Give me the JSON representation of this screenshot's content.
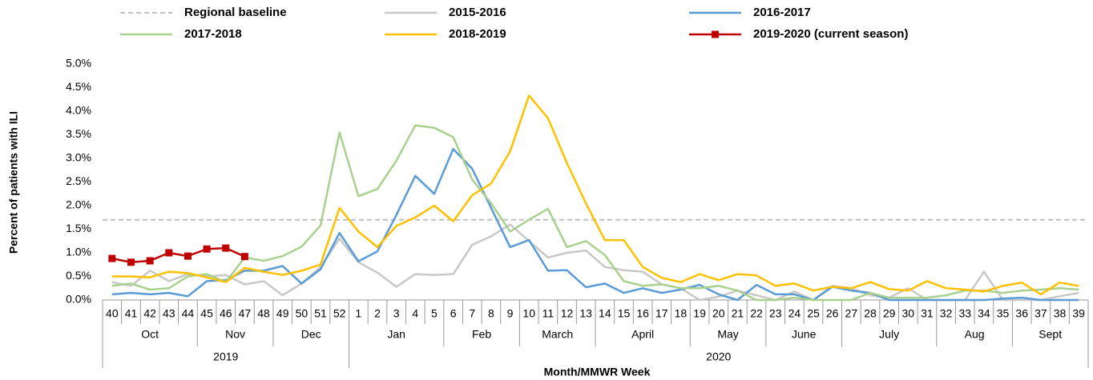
{
  "chart_data": {
    "type": "line",
    "y_label": "Percent of patients with ILI",
    "x_label": "Month/MMWR Week",
    "categories": [
      "40",
      "41",
      "42",
      "43",
      "44",
      "45",
      "46",
      "47",
      "48",
      "49",
      "50",
      "51",
      "52",
      "1",
      "2",
      "3",
      "4",
      "5",
      "6",
      "7",
      "8",
      "9",
      "10",
      "11",
      "12",
      "13",
      "14",
      "15",
      "16",
      "17",
      "18",
      "19",
      "20",
      "21",
      "22",
      "23",
      "24",
      "25",
      "26",
      "27",
      "28",
      "29",
      "30",
      "31",
      "32",
      "33",
      "34",
      "35",
      "36",
      "37",
      "38",
      "39"
    ],
    "category_months": [
      "Oct",
      "Oct",
      "Oct",
      "Oct",
      "Oct",
      "Nov",
      "Nov",
      "Nov",
      "Nov",
      "Dec",
      "Dec",
      "Dec",
      "Dec",
      "Jan",
      "Jan",
      "Jan",
      "Jan",
      "Jan",
      "Feb",
      "Feb",
      "Feb",
      "Feb",
      "March",
      "March",
      "March",
      "March",
      "April",
      "April",
      "April",
      "April",
      "April",
      "May",
      "May",
      "May",
      "May",
      "June",
      "June",
      "June",
      "June",
      "July",
      "July",
      "July",
      "July",
      "July",
      "Aug",
      "Aug",
      "Aug",
      "Aug",
      "Sept",
      "Sept",
      "Sept",
      "Sept"
    ],
    "category_years": [
      "2019",
      "2019",
      "2019",
      "2019",
      "2019",
      "2019",
      "2019",
      "2019",
      "2019",
      "2019",
      "2019",
      "2019",
      "2019",
      "2020",
      "2020",
      "2020",
      "2020",
      "2020",
      "2020",
      "2020",
      "2020",
      "2020",
      "2020",
      "2020",
      "2020",
      "2020",
      "2020",
      "2020",
      "2020",
      "2020",
      "2020",
      "2020",
      "2020",
      "2020",
      "2020",
      "2020",
      "2020",
      "2020",
      "2020",
      "2020",
      "2020",
      "2020",
      "2020",
      "2020",
      "2020",
      "2020",
      "2020",
      "2020",
      "2020",
      "2020",
      "2020",
      "2020"
    ],
    "baseline": {
      "name": "Regional baseline",
      "value": 1.7,
      "color": "#bfbfbf"
    },
    "series": [
      {
        "name": "2015-2016",
        "color": "#c8c8c8",
        "values": [
          0.38,
          0.3,
          0.62,
          0.4,
          0.55,
          0.5,
          0.53,
          0.33,
          0.4,
          0.1,
          0.35,
          0.7,
          1.3,
          0.8,
          0.58,
          0.28,
          0.55,
          0.53,
          0.55,
          1.17,
          1.35,
          1.6,
          1.25,
          0.9,
          1.0,
          1.05,
          0.7,
          0.63,
          0.6,
          0.33,
          0.25,
          0.0,
          0.07,
          0.2,
          0.1,
          0.0,
          0.18,
          0.0,
          0.3,
          0.25,
          0.1,
          0.05,
          0.25,
          0.0,
          0.0,
          0.0,
          0.6,
          0.0,
          0.0,
          0.0,
          0.08,
          0.15
        ]
      },
      {
        "name": "2016-2017",
        "color": "#5b9bd5",
        "values": [
          0.12,
          0.15,
          0.12,
          0.15,
          0.08,
          0.4,
          0.42,
          0.62,
          0.62,
          0.72,
          0.35,
          0.65,
          1.42,
          0.82,
          1.03,
          1.8,
          2.63,
          2.25,
          3.2,
          2.78,
          1.95,
          1.12,
          1.27,
          0.62,
          0.63,
          0.27,
          0.35,
          0.15,
          0.25,
          0.15,
          0.22,
          0.32,
          0.12,
          0.0,
          0.32,
          0.12,
          0.12,
          0.0,
          0.28,
          0.2,
          0.15,
          0.0,
          0.0,
          0.0,
          0.0,
          0.0,
          0.0,
          0.03,
          0.05,
          0.0,
          0.0,
          0.0
        ]
      },
      {
        "name": "2017-2018",
        "color": "#a9d18e",
        "values": [
          0.3,
          0.35,
          0.22,
          0.25,
          0.5,
          0.55,
          0.38,
          0.9,
          0.83,
          0.93,
          1.13,
          1.58,
          3.55,
          2.2,
          2.35,
          2.95,
          3.7,
          3.65,
          3.45,
          2.55,
          2.05,
          1.45,
          1.7,
          1.93,
          1.12,
          1.25,
          0.95,
          0.4,
          0.3,
          0.33,
          0.25,
          0.25,
          0.3,
          0.2,
          0.0,
          0.0,
          0.05,
          0.0,
          0.0,
          0.0,
          0.15,
          0.05,
          0.05,
          0.05,
          0.1,
          0.2,
          0.2,
          0.15,
          0.2,
          0.22,
          0.25,
          0.22
        ]
      },
      {
        "name": "2018-2019",
        "color": "#ffc000",
        "values": [
          0.5,
          0.5,
          0.48,
          0.6,
          0.57,
          0.48,
          0.38,
          0.68,
          0.6,
          0.53,
          0.62,
          0.75,
          1.95,
          1.45,
          1.12,
          1.57,
          1.75,
          2.0,
          1.67,
          2.22,
          2.47,
          3.15,
          4.33,
          3.85,
          2.9,
          2.05,
          1.27,
          1.27,
          0.7,
          0.47,
          0.38,
          0.55,
          0.42,
          0.55,
          0.52,
          0.3,
          0.35,
          0.2,
          0.28,
          0.25,
          0.38,
          0.23,
          0.2,
          0.4,
          0.25,
          0.22,
          0.18,
          0.3,
          0.37,
          0.12,
          0.37,
          0.3
        ]
      },
      {
        "name": "2019-2020 (current season)",
        "color": "#c00000",
        "markers": true,
        "values": [
          0.88,
          0.8,
          0.83,
          1.0,
          0.93,
          1.08,
          1.1,
          0.92,
          null,
          null,
          null,
          null,
          null,
          null,
          null,
          null,
          null,
          null,
          null,
          null,
          null,
          null,
          null,
          null,
          null,
          null,
          null,
          null,
          null,
          null,
          null,
          null,
          null,
          null,
          null,
          null,
          null,
          null,
          null,
          null,
          null,
          null,
          null,
          null,
          null,
          null,
          null,
          null,
          null,
          null,
          null,
          null
        ]
      }
    ],
    "ylim": [
      0,
      5
    ],
    "yticks": [
      {
        "value": 0,
        "label": "0.0%"
      },
      {
        "value": 0.5,
        "label": "0.5%"
      },
      {
        "value": 1,
        "label": "1.0%"
      },
      {
        "value": 1.5,
        "label": "1.5%"
      },
      {
        "value": 2,
        "label": "2.0%"
      },
      {
        "value": 2.5,
        "label": "2.5%"
      },
      {
        "value": 3,
        "label": "3.0%"
      },
      {
        "value": 3.5,
        "label": "3.5%"
      },
      {
        "value": 4,
        "label": "4.0%"
      },
      {
        "value": 4.5,
        "label": "4.5%"
      },
      {
        "value": 5,
        "label": "5.0%"
      }
    ]
  }
}
